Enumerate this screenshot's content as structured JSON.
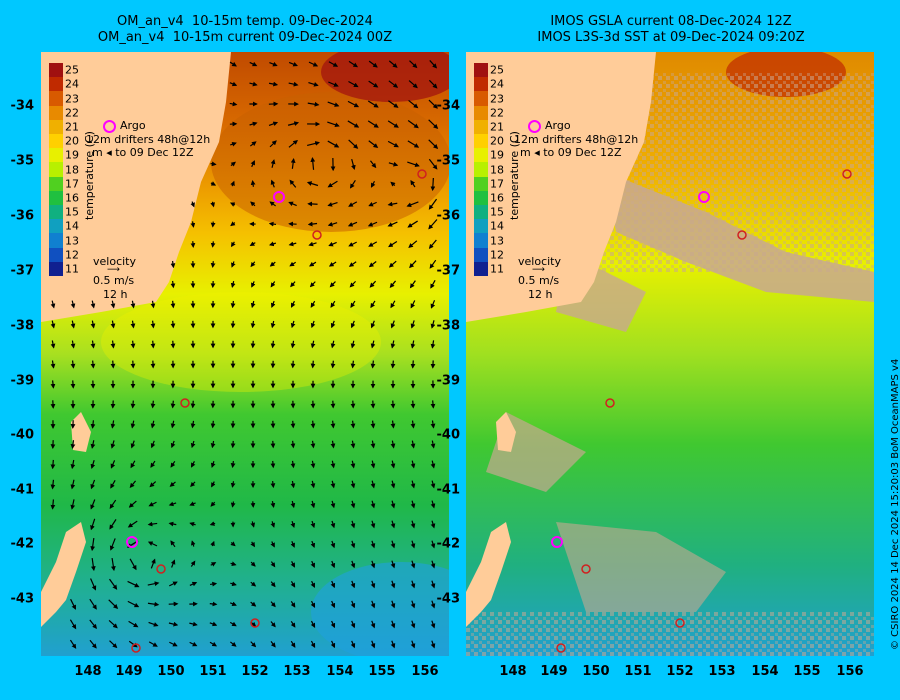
{
  "left_panel": {
    "title_line1": "OM_an_v4  10-15m temp. 09-Dec-2024",
    "title_line2": "OM_an_v4  10-15m current 09-Dec-2024 00Z"
  },
  "right_panel": {
    "title_line1": "IMOS GSLA current 08-Dec-2024 12Z",
    "title_line2": "IMOS L3S-3d SST at 09-Dec-2024 09:20Z"
  },
  "colorbar": {
    "title": "temperature (C)",
    "ticks": [
      "25",
      "24",
      "23",
      "22",
      "21",
      "20",
      "19",
      "18",
      "17",
      "16",
      "15",
      "14",
      "13",
      "12",
      "11"
    ],
    "colors": [
      "#a01010",
      "#c02a00",
      "#d85a00",
      "#e88a00",
      "#f0b000",
      "#ffd000",
      "#e8f000",
      "#b8f000",
      "#50d020",
      "#20c040",
      "#10b080",
      "#10a0c0",
      "#1080d0",
      "#1050c0",
      "#102090"
    ]
  },
  "legend": {
    "argo_label": "Argo",
    "drifters_label": "drifters 48h@12h",
    "drifters_label_b": "to 09 Dec 12Z",
    "m_label": "12m",
    "m_label_b": "m",
    "velocity_title": "velocity",
    "velocity_scale": "0.5 m/s",
    "velocity_time": "12 h"
  },
  "axes": {
    "lat_labels": [
      "-34",
      "-35",
      "-36",
      "-37",
      "-38",
      "-39",
      "-40",
      "-41",
      "-42",
      "-43"
    ],
    "lon_labels": [
      "148",
      "149",
      "150",
      "151",
      "152",
      "153",
      "154",
      "155",
      "156"
    ]
  },
  "copyright": "© CSIRO 2024   14 Dec 2024 15:20:03 BoM OceanMAPS v4",
  "colors": {
    "background": "#00c8ff",
    "land": "#ffcc99",
    "no_data": "#c8a890",
    "argo_marker": "#ff00ff",
    "drifter_marker": "#d02020"
  }
}
